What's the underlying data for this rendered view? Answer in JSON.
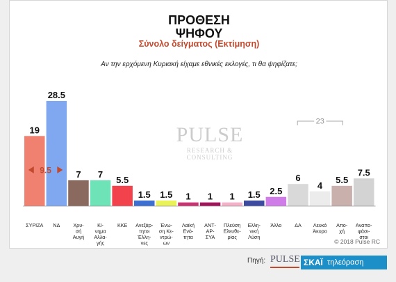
{
  "header": {
    "title_line1": "ΠΡΟΘΕΣΗ",
    "title_line2": "ΨΗΦΟΥ",
    "subtitle": "Σύνολο δείγματος   (Εκτίμηση)",
    "question": "Αν την ερχόμενη Κυριακή είχαμε εθνικές εκλογές, τι θα ψηφίζατε;"
  },
  "watermark": {
    "main": "PULSE",
    "sub": "RESEARCH & CONSULTING"
  },
  "copyright": "© 2018 Pulse RC",
  "footer": {
    "label": "Πηγή:",
    "pulse_logo": "PULSE",
    "skai_brand": "ΣΚΑΪ",
    "skai_channel": "τηλεόραση"
  },
  "chart_data": {
    "type": "bar",
    "ylim": [
      0,
      30
    ],
    "categories": [
      "ΣΥΡΙΖΑ",
      "ΝΔ",
      "Χρυ-σή Αυγή",
      "Κί-νημα Αλλα-γής",
      "ΚΚΕ",
      "Ανεξάρ-τητοι Έλλη-νες",
      "Ένω-ση Κε-ντρώ-ων",
      "Λαϊκή Ενό-τητα",
      "ΑΝΤ-ΑΡ-ΣΥΑ",
      "Πλεύση Ελευθε-ρίας",
      "Ελλη-νική Λύση",
      "Άλλο",
      "ΔΑ",
      "Λευκό Άκυρο",
      "Αποχή",
      "Αναπο-φάσι-στοι"
    ],
    "values": [
      19,
      28.5,
      7,
      7,
      5.5,
      1.5,
      1.5,
      1,
      1,
      1,
      1.5,
      2.5,
      6,
      4,
      5.5,
      7.5
    ],
    "value_labels": [
      "19",
      "28.5",
      "7",
      "7",
      "5.5",
      "1.5",
      "1.5",
      "1",
      "1",
      "1",
      "1.5",
      "2.5",
      "6",
      "4",
      "5.5",
      "7.5"
    ],
    "category_lines": [
      [
        "ΣΥΡΙΖΑ"
      ],
      [
        "ΝΔ"
      ],
      [
        "Χρυ-",
        "σή",
        "Αυγή"
      ],
      [
        "Κί-",
        "νημα",
        "Αλλα-",
        "γής"
      ],
      [
        "ΚΚΕ"
      ],
      [
        "Ανεξάρ-",
        "τητοι",
        "Έλλη-",
        "νες"
      ],
      [
        "Ένω-",
        "ση Κε-",
        "ντρώ-",
        "ων"
      ],
      [
        "Λαϊκή",
        "Ενό-",
        "τητα"
      ],
      [
        "ΑΝΤ-",
        "ΑΡ-",
        "ΣΥΑ"
      ],
      [
        "Πλεύση",
        "Ελευθε-",
        "ρίας"
      ],
      [
        "Ελλη-",
        "νική",
        "Λύση"
      ],
      [
        "Άλλο"
      ],
      [
        "ΔΑ"
      ],
      [
        "Λευκό",
        "Άκυρο"
      ],
      [
        "Απο-",
        "χή"
      ],
      [
        "Αναπο-",
        "φάσι-",
        "στοι"
      ]
    ],
    "colors": [
      "#f08070",
      "#7fa8f0",
      "#8a6a5e",
      "#6ee3b8",
      "#f2424b",
      "#3d6fd1",
      "#eaf25a",
      "#c83472",
      "#a0145a",
      "#f3b0c8",
      "#3c4aa0",
      "#d07ce8",
      "#d9d9d9",
      "#ececec",
      "#c9b0ac",
      "#d3d3d3"
    ],
    "annotations": [
      {
        "text": "9.5",
        "between": [
          "ΣΥΡΙΖΑ",
          "ΝΔ"
        ],
        "color": "#c0492e"
      },
      {
        "text": "23",
        "spanning": [
          "ΔΑ",
          "Αποχή"
        ],
        "color": "#999999"
      }
    ]
  }
}
